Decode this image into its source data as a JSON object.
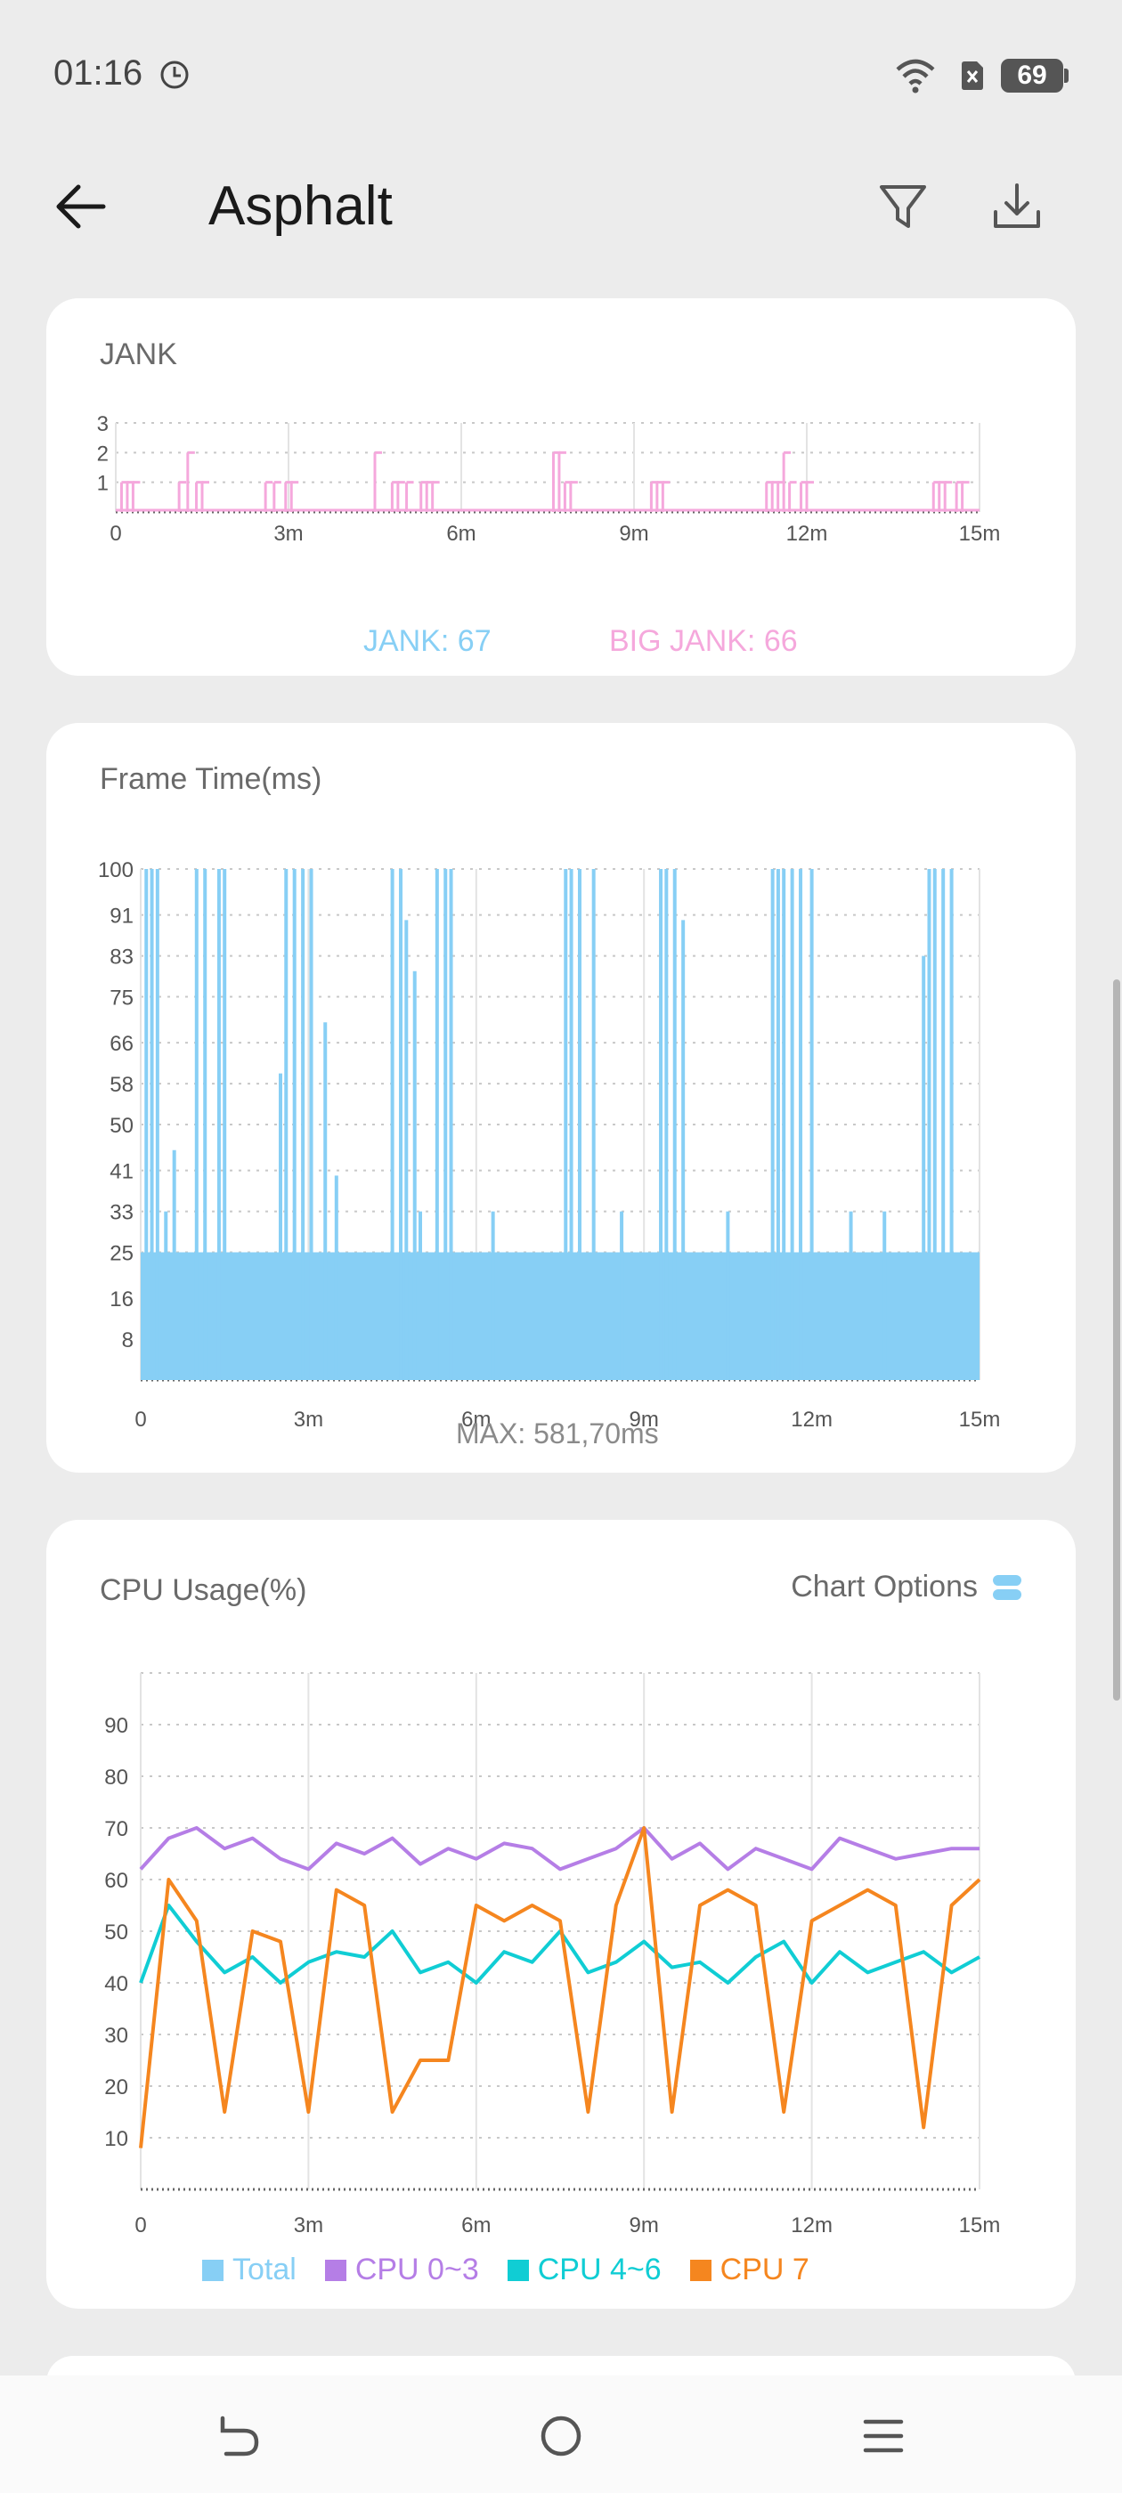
{
  "status_bar": {
    "time": "01:16",
    "battery": "69",
    "icons": [
      "clock-icon",
      "wifi-icon",
      "sim-off-icon",
      "battery-icon"
    ]
  },
  "app_bar": {
    "title": "Asphalt",
    "icons": [
      "back-arrow-icon",
      "filter-icon",
      "download-icon"
    ]
  },
  "colors": {
    "jank": "#87cff5",
    "big_jank": "#f5a8dc",
    "frame": "#87cff5",
    "total": "#87cff5",
    "cpu03": "#b57ee6",
    "cpu46": "#10cdd4",
    "cpu7": "#f5861f"
  },
  "jank_card": {
    "title": "JANK",
    "jank_label": "JANK: 67",
    "big_jank_label": "BIG JANK: 66"
  },
  "frame_card": {
    "title": "Frame Time(ms)",
    "max_label": "MAX: 581,70ms"
  },
  "cpu_card": {
    "title": "CPU Usage(%)",
    "options_label": "Chart Options",
    "legend": [
      "Total",
      "CPU 0~3",
      "CPU 4~6",
      "CPU 7"
    ]
  },
  "nav_bar": {
    "icons": [
      "back-gesture-icon",
      "home-icon",
      "menu-icon"
    ]
  },
  "chart_data": [
    {
      "type": "bar",
      "title": "JANK",
      "x_ticks": [
        "0",
        "3m",
        "6m",
        "9m",
        "12m",
        "15m"
      ],
      "y_ticks": [
        "1",
        "2",
        "3"
      ],
      "ylim": [
        0,
        3
      ],
      "xlim": [
        0,
        15
      ],
      "grid": true,
      "series": [
        {
          "name": "JANK: 67",
          "values": []
        },
        {
          "name": "BIG JANK: 66",
          "spikes": [
            [
              0.1,
              1
            ],
            [
              0.2,
              1
            ],
            [
              0.3,
              1
            ],
            [
              1.1,
              1
            ],
            [
              1.25,
              2
            ],
            [
              1.4,
              1
            ],
            [
              1.5,
              1
            ],
            [
              2.6,
              1
            ],
            [
              2.75,
              1
            ],
            [
              2.95,
              1
            ],
            [
              3.05,
              1
            ],
            [
              4.5,
              2
            ],
            [
              4.8,
              1
            ],
            [
              4.9,
              1
            ],
            [
              5.05,
              1
            ],
            [
              5.3,
              1
            ],
            [
              5.4,
              1
            ],
            [
              5.5,
              1
            ],
            [
              7.6,
              2
            ],
            [
              7.7,
              2
            ],
            [
              7.8,
              1
            ],
            [
              7.9,
              1
            ],
            [
              9.3,
              1
            ],
            [
              9.4,
              1
            ],
            [
              9.5,
              1
            ],
            [
              11.3,
              1
            ],
            [
              11.4,
              1
            ],
            [
              11.5,
              1
            ],
            [
              11.6,
              2
            ],
            [
              11.7,
              1
            ],
            [
              11.9,
              1
            ],
            [
              12.0,
              1
            ],
            [
              14.2,
              1
            ],
            [
              14.3,
              1
            ],
            [
              14.4,
              1
            ],
            [
              14.6,
              1
            ],
            [
              14.7,
              1
            ]
          ]
        }
      ]
    },
    {
      "type": "bar",
      "title": "Frame Time(ms)",
      "x_ticks": [
        "0",
        "3m",
        "6m",
        "9m",
        "12m",
        "15m"
      ],
      "y_ticks": [
        "8",
        "16",
        "25",
        "33",
        "41",
        "50",
        "58",
        "66",
        "75",
        "83",
        "91",
        "100"
      ],
      "ylim": [
        0,
        100
      ],
      "xlim": [
        0,
        15
      ],
      "grid": true,
      "baseline_range": [
        0,
        25
      ],
      "spikes": [
        [
          0.1,
          100
        ],
        [
          0.2,
          100
        ],
        [
          0.3,
          100
        ],
        [
          0.45,
          33
        ],
        [
          0.6,
          45
        ],
        [
          1.0,
          100
        ],
        [
          1.15,
          100
        ],
        [
          1.4,
          100
        ],
        [
          1.5,
          100
        ],
        [
          2.5,
          60
        ],
        [
          2.6,
          100
        ],
        [
          2.75,
          100
        ],
        [
          2.9,
          100
        ],
        [
          3.05,
          100
        ],
        [
          3.3,
          70
        ],
        [
          3.5,
          40
        ],
        [
          4.5,
          100
        ],
        [
          4.65,
          100
        ],
        [
          4.75,
          90
        ],
        [
          4.9,
          80
        ],
        [
          5.3,
          100
        ],
        [
          5.45,
          100
        ],
        [
          5.55,
          100
        ],
        [
          7.6,
          100
        ],
        [
          7.7,
          100
        ],
        [
          7.85,
          100
        ],
        [
          8.1,
          100
        ],
        [
          9.3,
          100
        ],
        [
          9.4,
          100
        ],
        [
          9.55,
          100
        ],
        [
          9.7,
          90
        ],
        [
          11.3,
          100
        ],
        [
          11.4,
          100
        ],
        [
          11.5,
          100
        ],
        [
          11.65,
          100
        ],
        [
          11.8,
          100
        ],
        [
          12.0,
          100
        ],
        [
          14.0,
          83
        ],
        [
          14.1,
          100
        ],
        [
          14.2,
          100
        ],
        [
          14.35,
          100
        ],
        [
          14.5,
          100
        ],
        [
          5.0,
          33
        ],
        [
          6.3,
          33
        ],
        [
          8.6,
          33
        ],
        [
          10.5,
          33
        ],
        [
          12.7,
          33
        ],
        [
          13.3,
          33
        ]
      ]
    },
    {
      "type": "line",
      "title": "CPU Usage(%)",
      "x_ticks": [
        "0",
        "3m",
        "6m",
        "9m",
        "12m",
        "15m"
      ],
      "y_ticks": [
        "10",
        "20",
        "30",
        "40",
        "50",
        "60",
        "70",
        "80",
        "90"
      ],
      "ylim": [
        0,
        100
      ],
      "xlim": [
        0,
        15
      ],
      "grid": true,
      "series": [
        {
          "name": "CPU 0~3",
          "x": [
            0,
            0.5,
            1,
            1.5,
            2,
            2.5,
            3,
            3.5,
            4,
            4.5,
            5,
            5.5,
            6,
            6.5,
            7,
            7.5,
            8,
            8.5,
            9,
            9.5,
            10,
            10.5,
            11,
            11.5,
            12,
            12.5,
            13,
            13.5,
            14,
            14.5,
            15
          ],
          "values": [
            62,
            68,
            70,
            66,
            68,
            64,
            62,
            67,
            65,
            68,
            63,
            66,
            64,
            67,
            66,
            62,
            64,
            66,
            70,
            64,
            67,
            62,
            66,
            64,
            62,
            68,
            66,
            64,
            65,
            66,
            66
          ]
        },
        {
          "name": "CPU 4~6",
          "x": [
            0,
            0.5,
            1,
            1.5,
            2,
            2.5,
            3,
            3.5,
            4,
            4.5,
            5,
            5.5,
            6,
            6.5,
            7,
            7.5,
            8,
            8.5,
            9,
            9.5,
            10,
            10.5,
            11,
            11.5,
            12,
            12.5,
            13,
            13.5,
            14,
            14.5,
            15
          ],
          "values": [
            40,
            55,
            48,
            42,
            45,
            40,
            44,
            46,
            45,
            50,
            42,
            44,
            40,
            46,
            44,
            50,
            42,
            44,
            48,
            43,
            44,
            40,
            45,
            48,
            40,
            46,
            42,
            44,
            46,
            42,
            45
          ]
        },
        {
          "name": "CPU 7",
          "x": [
            0,
            0.5,
            1,
            1.5,
            2,
            2.5,
            3,
            3.5,
            4,
            4.5,
            5,
            5.5,
            6,
            6.5,
            7,
            7.5,
            8,
            8.5,
            9,
            9.5,
            10,
            10.5,
            11,
            11.5,
            12,
            12.5,
            13,
            13.5,
            14,
            14.5,
            15
          ],
          "values": [
            8,
            60,
            52,
            15,
            50,
            48,
            15,
            58,
            55,
            15,
            25,
            25,
            55,
            52,
            55,
            52,
            15,
            55,
            70,
            15,
            55,
            58,
            55,
            15,
            52,
            55,
            58,
            55,
            12,
            55,
            60
          ]
        },
        {
          "name": "Total",
          "x": [],
          "values": []
        }
      ]
    }
  ]
}
